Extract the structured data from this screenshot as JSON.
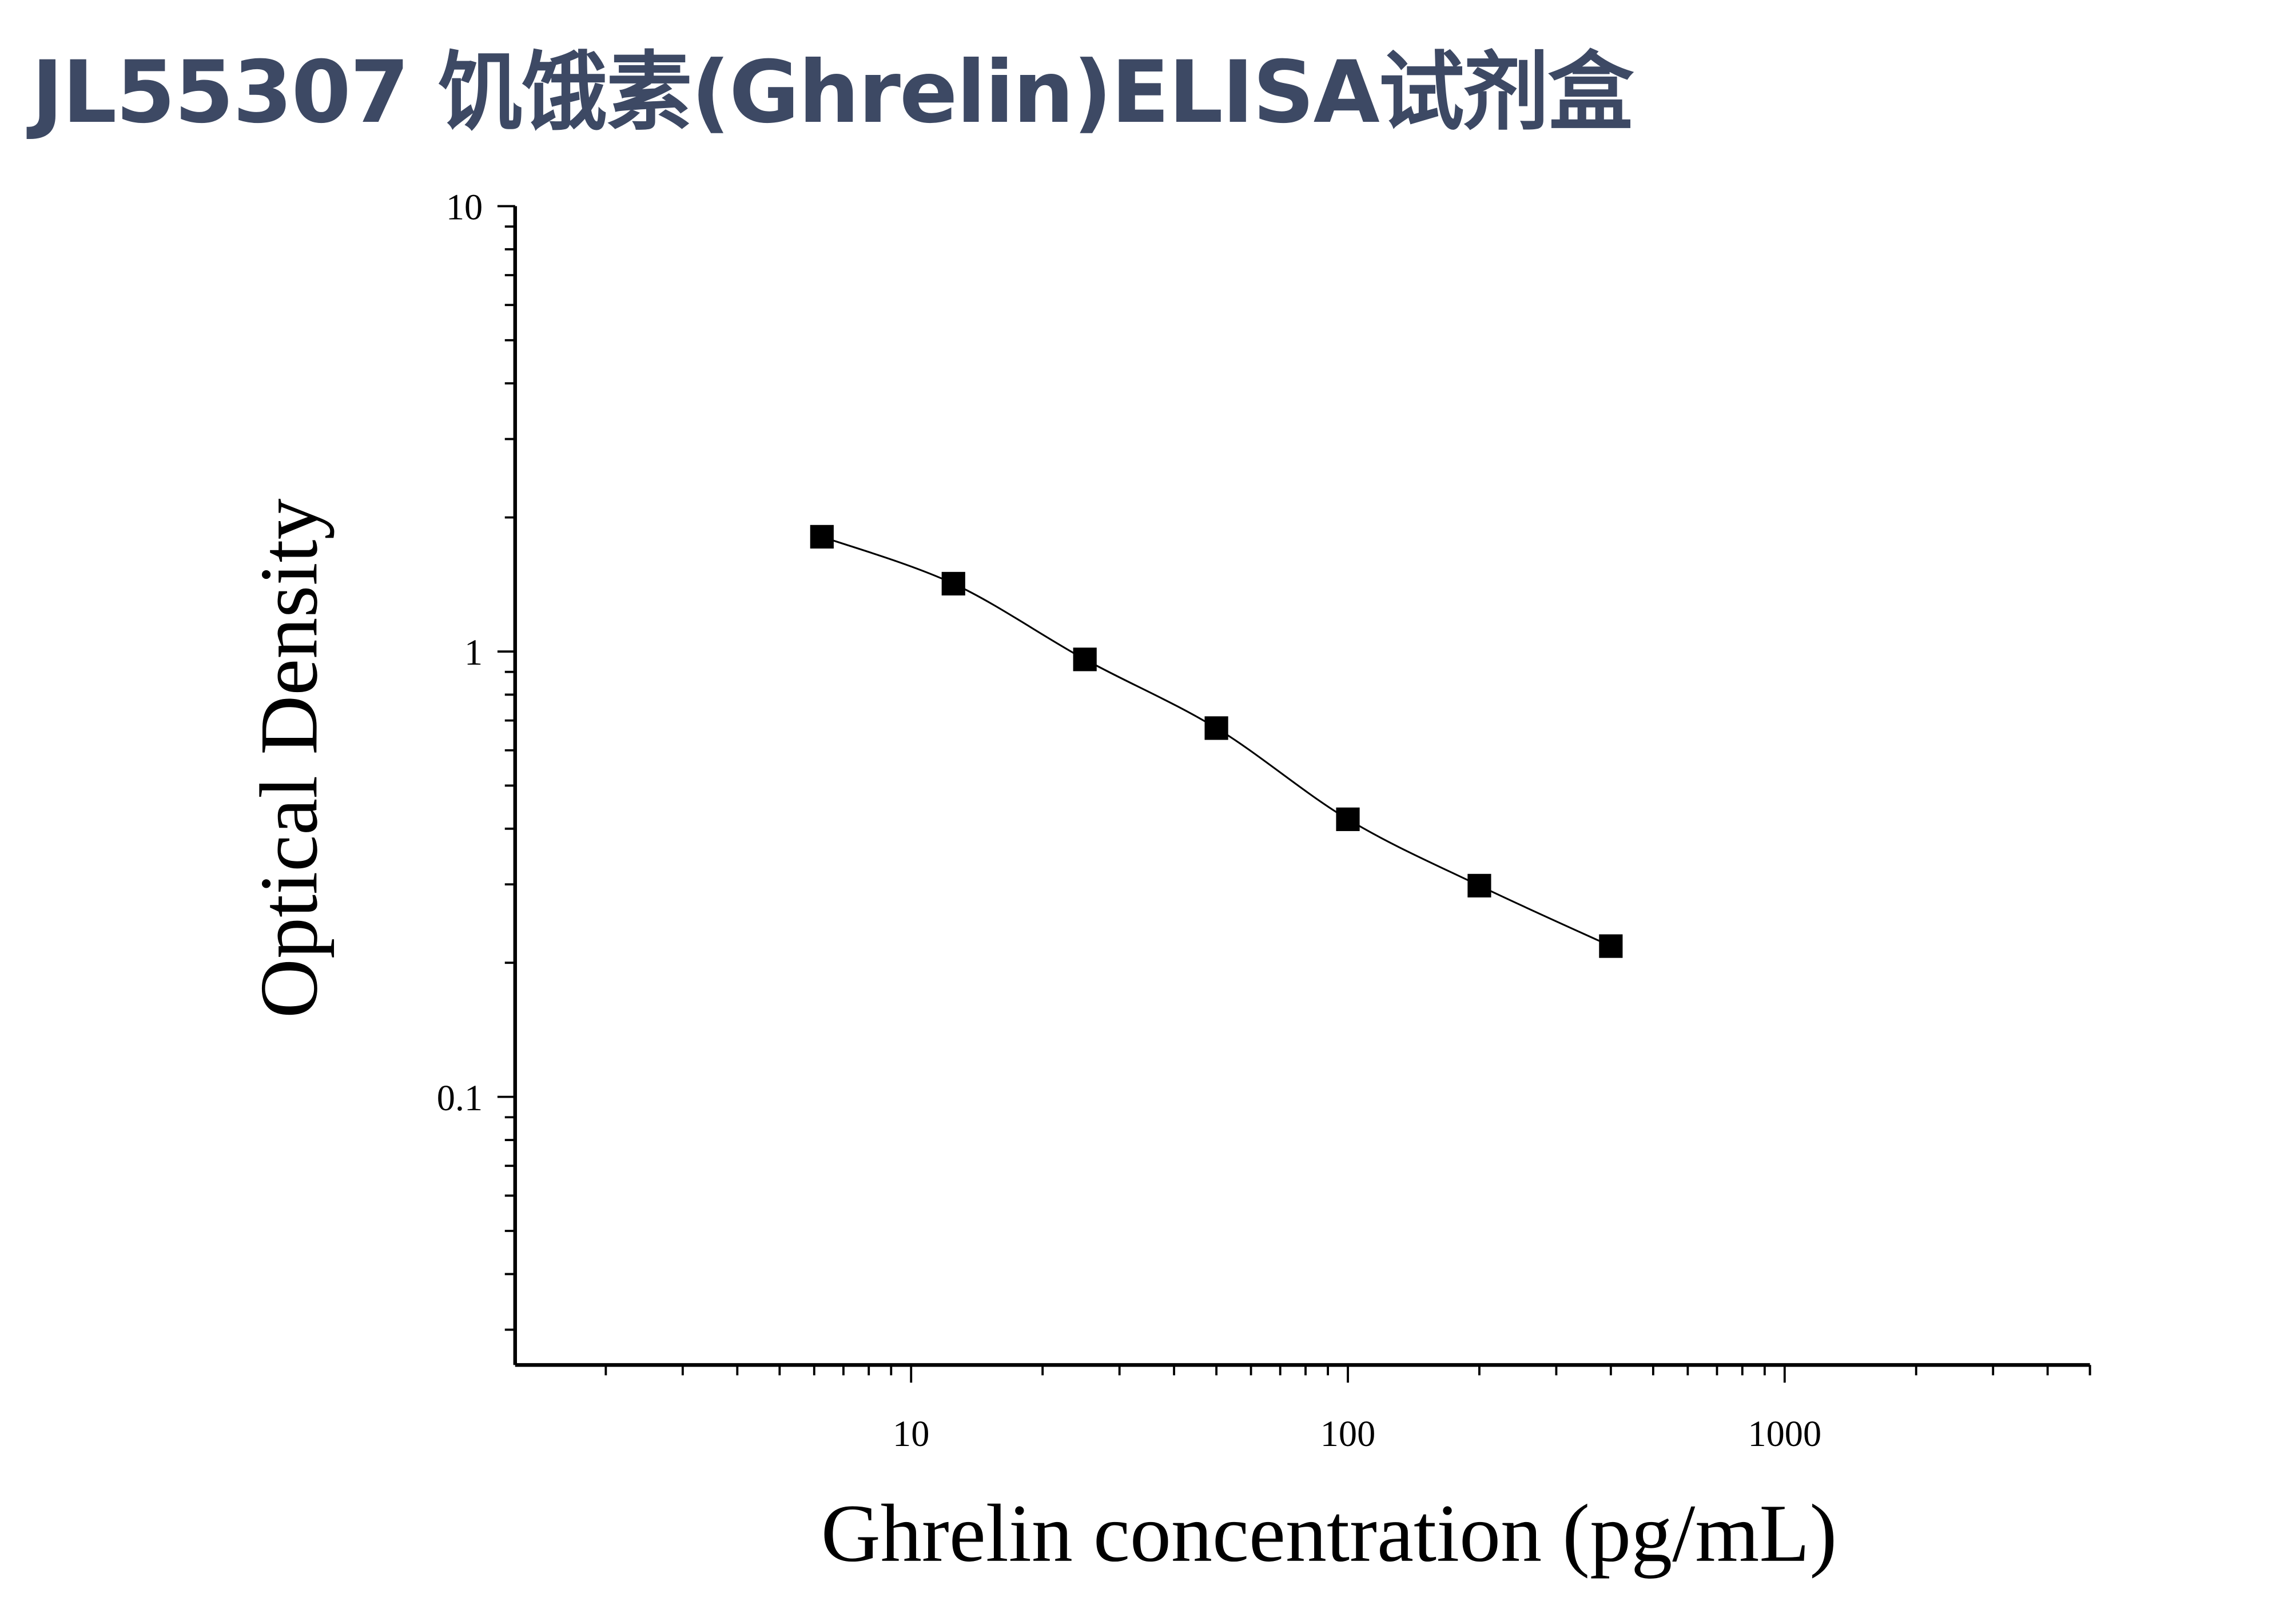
{
  "chart_data": {
    "type": "scatter",
    "title": "JL55307 饥饿素(Ghrelin)ELISA试剂盒",
    "xlabel": "Ghrelin concentration (pg/mL)",
    "ylabel": "Optical Density",
    "xscale": "log",
    "yscale": "log",
    "xlim": [
      1.24,
      5000
    ],
    "ylim": [
      0.025,
      10
    ],
    "x_ticks": [
      "10",
      "100",
      "1000"
    ],
    "x_tick_values": [
      10,
      100,
      1000
    ],
    "y_ticks": [
      "0.1",
      "1",
      "10"
    ],
    "y_tick_values": [
      0.1,
      1,
      10
    ],
    "grid": false,
    "marker": "square",
    "fit_curve": true,
    "color": "#000000",
    "series": [
      {
        "x": [
          6.25,
          12.5,
          25,
          50,
          100,
          200,
          400
        ],
        "y": [
          1.81,
          1.42,
          0.96,
          0.673,
          0.42,
          0.298,
          0.218
        ]
      }
    ]
  }
}
